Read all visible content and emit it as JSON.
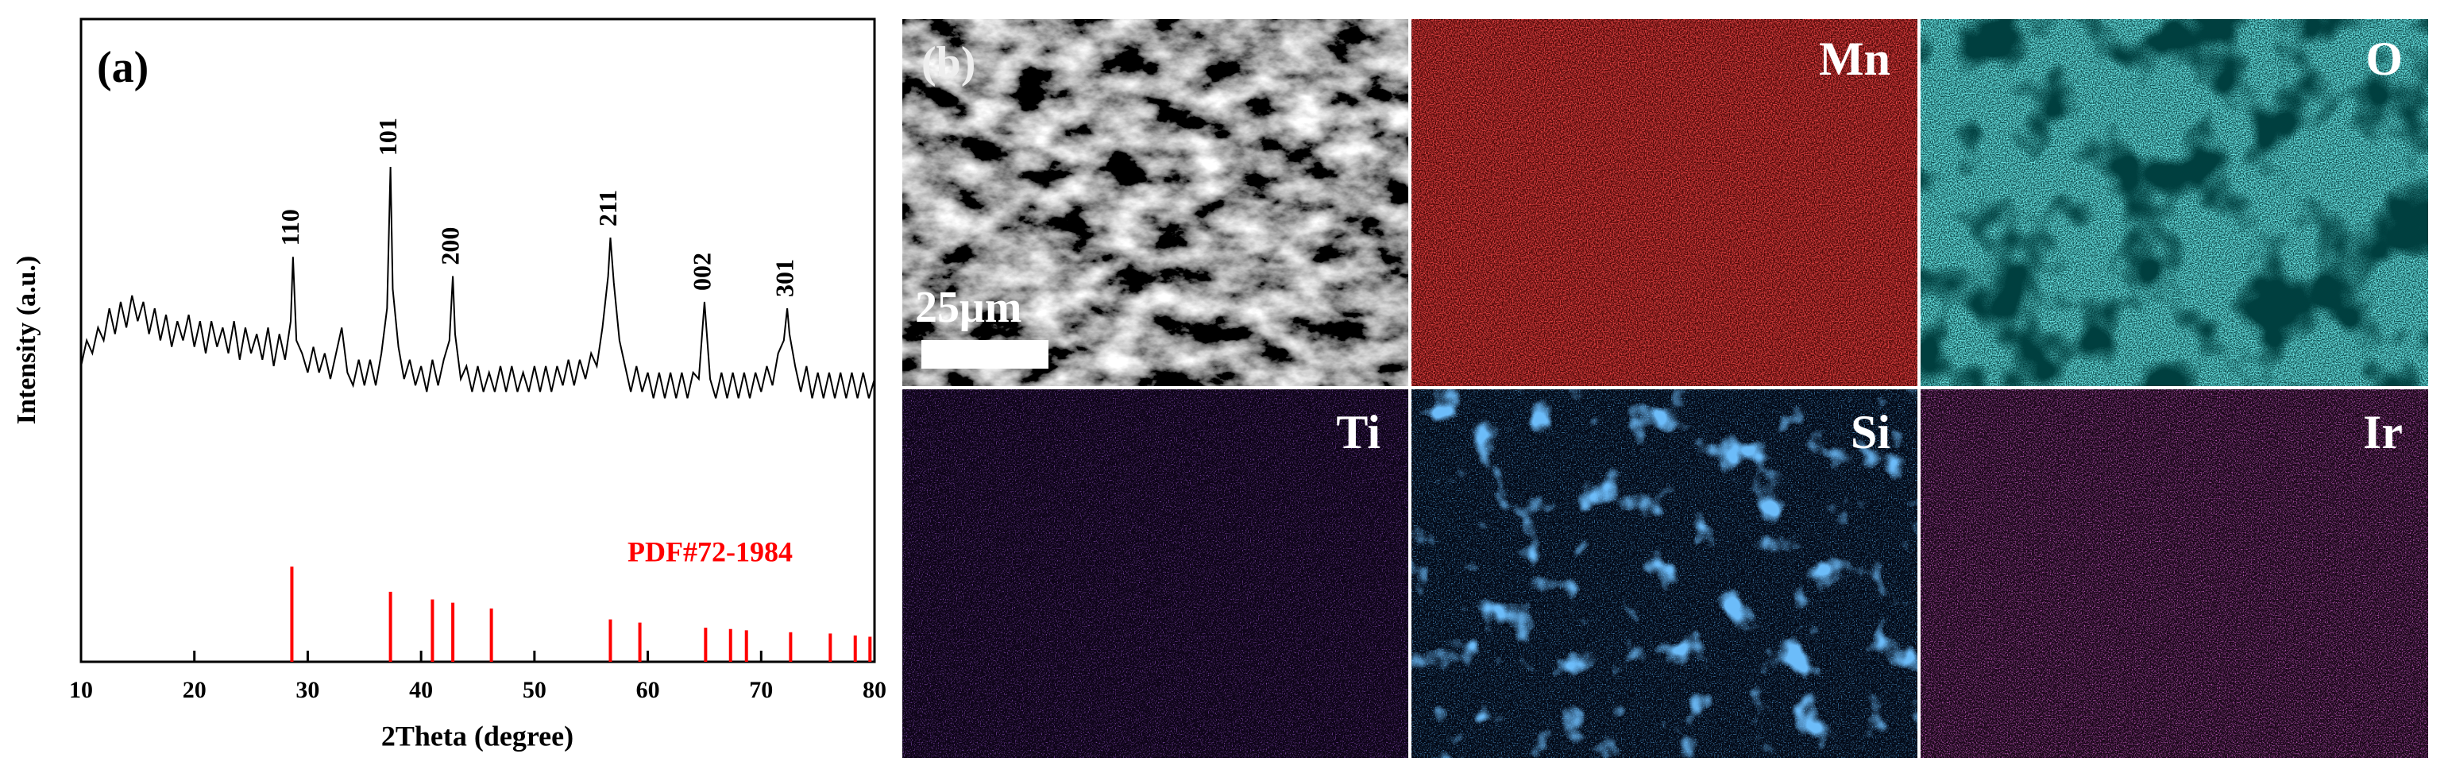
{
  "chart_data": {
    "type": "line",
    "panel_label": "(a)",
    "xlabel": "2Theta (degree)",
    "ylabel": "Intensity (a.u.)",
    "xlim": [
      10,
      80
    ],
    "xticks": [
      10,
      20,
      30,
      40,
      50,
      60,
      70,
      80
    ],
    "ylim": [
      0,
      100
    ],
    "color": "#000000",
    "x": [
      10,
      10.5,
      11,
      11.5,
      12,
      12.5,
      13,
      13.5,
      14,
      14.5,
      15,
      15.5,
      16,
      16.5,
      17,
      17.5,
      18,
      18.5,
      19,
      19.5,
      20,
      20.5,
      21,
      21.5,
      22,
      22.5,
      23,
      23.5,
      24,
      24.5,
      25,
      25.5,
      26,
      26.5,
      27,
      27.5,
      28,
      28.5,
      28.7,
      29,
      29.5,
      30,
      30.5,
      31,
      31.5,
      32,
      32.5,
      33,
      33.5,
      34,
      34.5,
      35,
      35.5,
      36,
      36.5,
      37,
      37.3,
      37.5,
      38,
      38.5,
      39,
      39.5,
      40,
      40.5,
      41,
      41.5,
      42,
      42.5,
      42.8,
      43,
      43.5,
      44,
      44.5,
      45,
      45.5,
      46,
      46.5,
      47,
      47.5,
      48,
      48.5,
      49,
      49.5,
      50,
      50.5,
      51,
      51.5,
      52,
      52.5,
      53,
      53.5,
      54,
      54.5,
      55,
      55.5,
      56,
      56.5,
      56.7,
      57,
      57.5,
      58,
      58.5,
      59,
      59.5,
      60,
      60.5,
      61,
      61.5,
      62,
      62.5,
      63,
      63.5,
      64,
      64.5,
      65,
      65.5,
      66,
      66.5,
      67,
      67.5,
      68,
      68.5,
      69,
      69.5,
      70,
      70.5,
      71,
      71.5,
      72,
      72.3,
      72.5,
      73,
      73.5,
      74,
      74.5,
      75,
      75.5,
      76,
      76.5,
      77,
      77.5,
      78,
      78.5,
      79,
      79.5,
      80
    ],
    "values": [
      46,
      50,
      48,
      52,
      50,
      55,
      51,
      56,
      52,
      57,
      53,
      56,
      51,
      55,
      50,
      54,
      49,
      53,
      50,
      54,
      49,
      53,
      48,
      53,
      49,
      52,
      48,
      53,
      47,
      52,
      48,
      51,
      47,
      52,
      46,
      51,
      47,
      53,
      63,
      50,
      48,
      45,
      49,
      45,
      48,
      44,
      48,
      52,
      45,
      43,
      47,
      43,
      47,
      43,
      48,
      55,
      77,
      58,
      49,
      44,
      47,
      43,
      46,
      42,
      47,
      43,
      47,
      50,
      60,
      51,
      44,
      46,
      42,
      46,
      42,
      45,
      42,
      46,
      42,
      46,
      42,
      45,
      42,
      46,
      42,
      46,
      42,
      46,
      43,
      47,
      43,
      47,
      44,
      48,
      46,
      52,
      60,
      66,
      59,
      50,
      46,
      42,
      46,
      42,
      45,
      41,
      45,
      41,
      45,
      41,
      45,
      41,
      45,
      44,
      56,
      44,
      41,
      45,
      41,
      45,
      41,
      45,
      41,
      45,
      42,
      46,
      43,
      48,
      50,
      55,
      51,
      46,
      42,
      46,
      41,
      45,
      41,
      45,
      41,
      45,
      41,
      45,
      41,
      45,
      41,
      44
    ],
    "peak_labels": [
      "110",
      "101",
      "200",
      "211",
      "002",
      "301"
    ],
    "peak_positions": [
      28.7,
      37.3,
      42.8,
      56.7,
      65.0,
      72.3
    ],
    "reference": {
      "name": "PDF#72-1984",
      "color": "#ff0000",
      "x": [
        28.6,
        37.3,
        41.0,
        42.8,
        46.2,
        56.7,
        59.3,
        65.1,
        67.3,
        68.7,
        72.6,
        76.1,
        78.3,
        79.6
      ],
      "values": [
        14.8,
        10.9,
        9.7,
        9.2,
        8.3,
        6.6,
        6.1,
        5.3,
        5.1,
        4.9,
        4.6,
        4.4,
        4.1,
        3.9
      ]
    }
  },
  "eds_panel": {
    "label": "(b)",
    "scale_bar": "25μm",
    "maps": [
      {
        "label": "Mn"
      },
      {
        "label": "O"
      },
      {
        "label": "Ti"
      },
      {
        "label": "Si"
      },
      {
        "label": "Ir"
      }
    ]
  }
}
